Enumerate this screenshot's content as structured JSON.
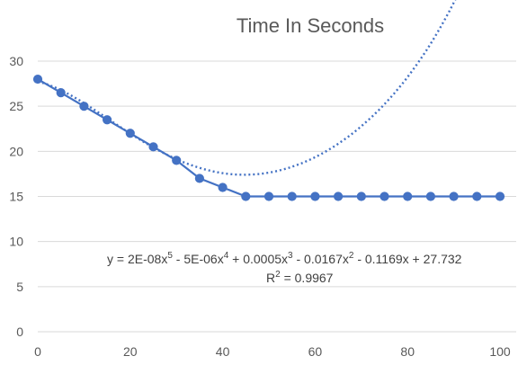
{
  "chart_data": {
    "type": "scatter",
    "title": "Time In Seconds",
    "xlabel": "",
    "ylabel": "",
    "xlim": [
      0,
      100
    ],
    "ylim": [
      0,
      30
    ],
    "x_ticks": [
      0,
      20,
      40,
      60,
      80,
      100
    ],
    "y_ticks": [
      0,
      5,
      10,
      15,
      20,
      25,
      30
    ],
    "grid": true,
    "legend": "none",
    "series_color": "#4472c4",
    "series": [
      {
        "x": [
          0,
          5,
          10,
          15,
          20,
          25,
          30,
          35,
          40,
          45,
          50,
          55,
          60,
          65,
          70,
          75,
          80,
          85,
          90,
          95,
          100
        ],
        "values": [
          28,
          26.5,
          25,
          23.5,
          22,
          20.5,
          19,
          17,
          16,
          15,
          15,
          15,
          15,
          15,
          15,
          15,
          15,
          15,
          15,
          15,
          15
        ]
      }
    ],
    "trendline": {
      "type": "polynomial",
      "order": 5,
      "coefficients": [
        2e-08,
        -5e-06,
        0.0005,
        -0.0167,
        -0.1169,
        27.732
      ],
      "equation_text": {
        "prefix": "y = 2E-08x",
        "t1_exp": "5",
        "t2": " - 5E-06x",
        "t2_exp": "4",
        "t3": " + 0.0005x",
        "t3_exp": "3",
        "t4": " - 0.0167x",
        "t4_exp": "2",
        "t5": " - 0.1169x + 27.732"
      },
      "r2_text": {
        "prefix": "R",
        "exp": "2",
        "suffix": " = 0.9967"
      }
    }
  }
}
